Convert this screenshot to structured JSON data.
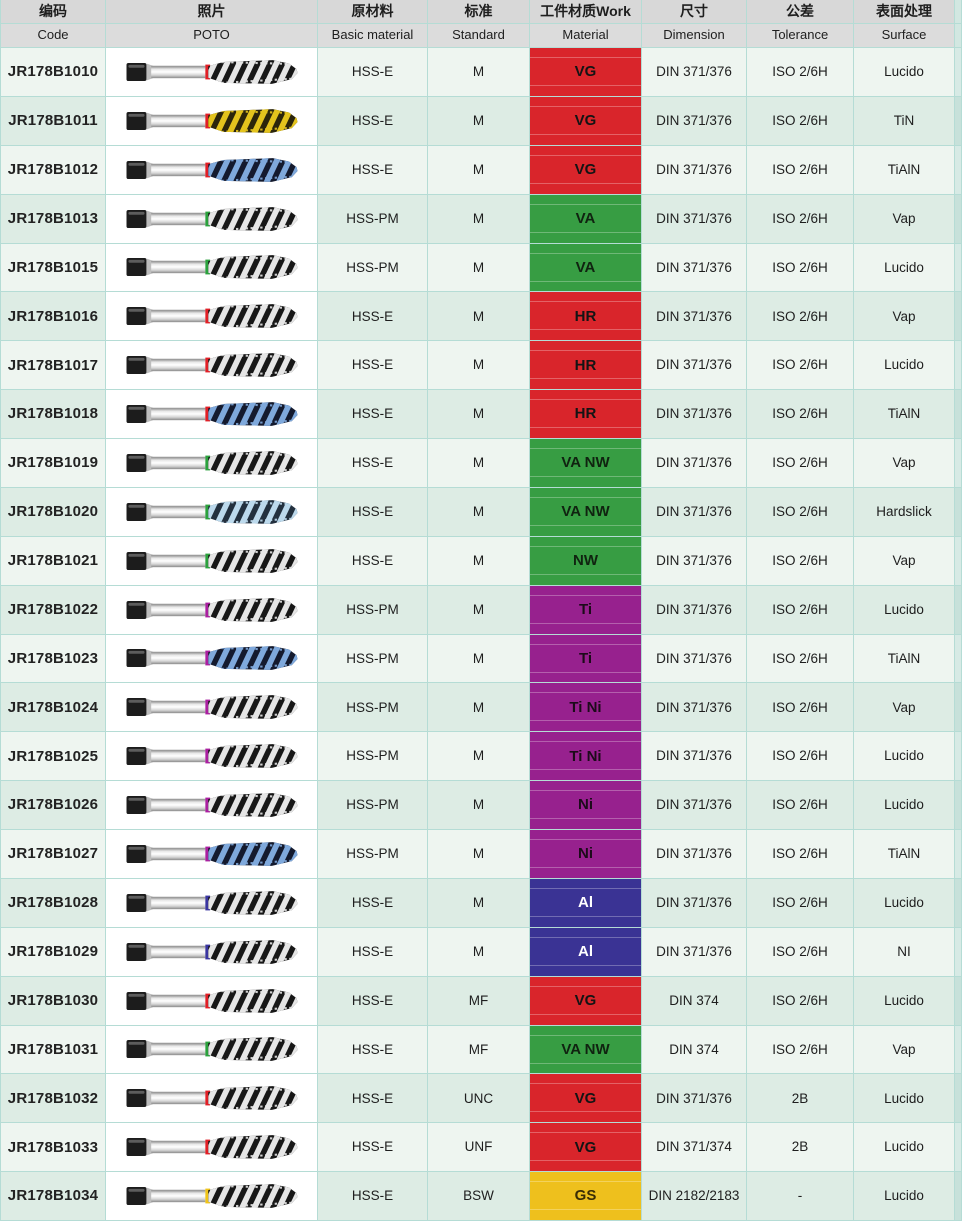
{
  "header": {
    "columns": [
      {
        "zh": "编码",
        "en": "Code"
      },
      {
        "zh": "照片",
        "en": "POTO"
      },
      {
        "zh": "原材料",
        "en": "Basic material"
      },
      {
        "zh": "标准",
        "en": "Standard"
      },
      {
        "zh": "工件材质Work",
        "en": "Material"
      },
      {
        "zh": "尺寸",
        "en": "Dimension"
      },
      {
        "zh": "公差",
        "en": "Tolerance"
      },
      {
        "zh": "表面处理",
        "en": "Surface"
      }
    ]
  },
  "colors": {
    "grid_line": "#b5dcd5",
    "row_light": "#eef5f0",
    "row_dark": "#ddece4",
    "header_bg": "#d8d8d8",
    "work": {
      "red": {
        "bg": "#d9252b",
        "fg": "#141414"
      },
      "green": {
        "bg": "#379d43",
        "fg": "#102310"
      },
      "purple": {
        "bg": "#97218e",
        "fg": "#1c0b1a"
      },
      "indigo": {
        "bg": "#3a3394",
        "fg": "#ffffff"
      },
      "yellow": {
        "bg": "#eec01d",
        "fg": "#3a2d05"
      }
    }
  },
  "photo_styles": {
    "rings": {
      "red": "#e11f26",
      "green": "#2ba13d",
      "purple": "#aa1fa0",
      "blue": "#3a35a0",
      "yellow": "#f0c419"
    },
    "flutes": {
      "steel": {
        "base": "#171717",
        "stripe": "#e6e6e6"
      },
      "gold": {
        "base": "#2b250b",
        "stripe": "#e3c31d"
      },
      "blue": {
        "base": "#141a2e",
        "stripe": "#7fa9dc"
      },
      "iceblue": {
        "base": "#23303e",
        "stripe": "#bcd9ec"
      }
    }
  },
  "rows": [
    {
      "code": "JR178B1010",
      "basic_material": "HSS-E",
      "standard": "M",
      "work_material": {
        "label": "VG",
        "color_key": "red"
      },
      "dimension": "DIN 371/376",
      "tolerance": "ISO 2/6H",
      "surface": "Lucido",
      "photo": {
        "ring": "red",
        "flute": "steel"
      }
    },
    {
      "code": "JR178B1011",
      "basic_material": "HSS-E",
      "standard": "M",
      "work_material": {
        "label": "VG",
        "color_key": "red"
      },
      "dimension": "DIN 371/376",
      "tolerance": "ISO 2/6H",
      "surface": "TiN",
      "photo": {
        "ring": "red",
        "flute": "gold"
      }
    },
    {
      "code": "JR178B1012",
      "basic_material": "HSS-E",
      "standard": "M",
      "work_material": {
        "label": "VG",
        "color_key": "red"
      },
      "dimension": "DIN 371/376",
      "tolerance": "ISO 2/6H",
      "surface": "TiAlN",
      "photo": {
        "ring": "red",
        "flute": "blue"
      }
    },
    {
      "code": "JR178B1013",
      "basic_material": "HSS-PM",
      "standard": "M",
      "work_material": {
        "label": "VA",
        "color_key": "green"
      },
      "dimension": "DIN 371/376",
      "tolerance": "ISO 2/6H",
      "surface": "Vap",
      "photo": {
        "ring": "green",
        "flute": "steel"
      }
    },
    {
      "code": "JR178B1015",
      "basic_material": "HSS-PM",
      "standard": "M",
      "work_material": {
        "label": "VA",
        "color_key": "green"
      },
      "dimension": "DIN 371/376",
      "tolerance": "ISO 2/6H",
      "surface": "Lucido",
      "photo": {
        "ring": "green",
        "flute": "steel"
      }
    },
    {
      "code": "JR178B1016",
      "basic_material": "HSS-E",
      "standard": "M",
      "work_material": {
        "label": "HR",
        "color_key": "red"
      },
      "dimension": "DIN 371/376",
      "tolerance": "ISO 2/6H",
      "surface": "Vap",
      "photo": {
        "ring": "red",
        "flute": "steel"
      }
    },
    {
      "code": "JR178B1017",
      "basic_material": "HSS-E",
      "standard": "M",
      "work_material": {
        "label": "HR",
        "color_key": "red"
      },
      "dimension": "DIN 371/376",
      "tolerance": "ISO 2/6H",
      "surface": "Lucido",
      "photo": {
        "ring": "red",
        "flute": "steel"
      }
    },
    {
      "code": "JR178B1018",
      "basic_material": "HSS-E",
      "standard": "M",
      "work_material": {
        "label": "HR",
        "color_key": "red"
      },
      "dimension": "DIN 371/376",
      "tolerance": "ISO 2/6H",
      "surface": "TiAlN",
      "photo": {
        "ring": "red",
        "flute": "blue"
      }
    },
    {
      "code": "JR178B1019",
      "basic_material": "HSS-E",
      "standard": "M",
      "work_material": {
        "label": "VA NW",
        "color_key": "green"
      },
      "dimension": "DIN 371/376",
      "tolerance": "ISO 2/6H",
      "surface": "Vap",
      "photo": {
        "ring": "green",
        "flute": "steel"
      }
    },
    {
      "code": "JR178B1020",
      "basic_material": "HSS-E",
      "standard": "M",
      "work_material": {
        "label": "VA NW",
        "color_key": "green"
      },
      "dimension": "DIN 371/376",
      "tolerance": "ISO 2/6H",
      "surface": "Hardslick",
      "photo": {
        "ring": "green",
        "flute": "iceblue"
      }
    },
    {
      "code": "JR178B1021",
      "basic_material": "HSS-E",
      "standard": "M",
      "work_material": {
        "label": "NW",
        "color_key": "green"
      },
      "dimension": "DIN 371/376",
      "tolerance": "ISO 2/6H",
      "surface": "Vap",
      "photo": {
        "ring": "green",
        "flute": "steel"
      }
    },
    {
      "code": "JR178B1022",
      "basic_material": "HSS-PM",
      "standard": "M",
      "work_material": {
        "label": "Ti",
        "color_key": "purple"
      },
      "dimension": "DIN 371/376",
      "tolerance": "ISO 2/6H",
      "surface": "Lucido",
      "photo": {
        "ring": "purple",
        "flute": "steel"
      }
    },
    {
      "code": "JR178B1023",
      "basic_material": "HSS-PM",
      "standard": "M",
      "work_material": {
        "label": "Ti",
        "color_key": "purple"
      },
      "dimension": "DIN 371/376",
      "tolerance": "ISO 2/6H",
      "surface": "TiAlN",
      "photo": {
        "ring": "purple",
        "flute": "blue"
      }
    },
    {
      "code": "JR178B1024",
      "basic_material": "HSS-PM",
      "standard": "M",
      "work_material": {
        "label": "Ti Ni",
        "color_key": "purple"
      },
      "dimension": "DIN 371/376",
      "tolerance": "ISO 2/6H",
      "surface": "Vap",
      "photo": {
        "ring": "purple",
        "flute": "steel"
      }
    },
    {
      "code": "JR178B1025",
      "basic_material": "HSS-PM",
      "standard": "M",
      "work_material": {
        "label": "Ti Ni",
        "color_key": "purple"
      },
      "dimension": "DIN 371/376",
      "tolerance": "ISO 2/6H",
      "surface": "Lucido",
      "photo": {
        "ring": "purple",
        "flute": "steel"
      }
    },
    {
      "code": "JR178B1026",
      "basic_material": "HSS-PM",
      "standard": "M",
      "work_material": {
        "label": "Ni",
        "color_key": "purple"
      },
      "dimension": "DIN 371/376",
      "tolerance": "ISO 2/6H",
      "surface": "Lucido",
      "photo": {
        "ring": "purple",
        "flute": "steel"
      }
    },
    {
      "code": "JR178B1027",
      "basic_material": "HSS-PM",
      "standard": "M",
      "work_material": {
        "label": "Ni",
        "color_key": "purple"
      },
      "dimension": "DIN 371/376",
      "tolerance": "ISO 2/6H",
      "surface": "TiAlN",
      "photo": {
        "ring": "purple",
        "flute": "blue"
      }
    },
    {
      "code": "JR178B1028",
      "basic_material": "HSS-E",
      "standard": "M",
      "work_material": {
        "label": "Al",
        "color_key": "indigo"
      },
      "dimension": "DIN 371/376",
      "tolerance": "ISO 2/6H",
      "surface": "Lucido",
      "photo": {
        "ring": "blue",
        "flute": "steel"
      }
    },
    {
      "code": "JR178B1029",
      "basic_material": "HSS-E",
      "standard": "M",
      "work_material": {
        "label": "Al",
        "color_key": "indigo"
      },
      "dimension": "DIN 371/376",
      "tolerance": "ISO 2/6H",
      "surface": "NI",
      "photo": {
        "ring": "blue",
        "flute": "steel"
      }
    },
    {
      "code": "JR178B1030",
      "basic_material": "HSS-E",
      "standard": "MF",
      "work_material": {
        "label": "VG",
        "color_key": "red"
      },
      "dimension": "DIN 374",
      "tolerance": "ISO 2/6H",
      "surface": "Lucido",
      "photo": {
        "ring": "red",
        "flute": "steel"
      }
    },
    {
      "code": "JR178B1031",
      "basic_material": "HSS-E",
      "standard": "MF",
      "work_material": {
        "label": "VA NW",
        "color_key": "green"
      },
      "dimension": "DIN 374",
      "tolerance": "ISO 2/6H",
      "surface": "Vap",
      "photo": {
        "ring": "green",
        "flute": "steel"
      }
    },
    {
      "code": "JR178B1032",
      "basic_material": "HSS-E",
      "standard": "UNC",
      "work_material": {
        "label": "VG",
        "color_key": "red"
      },
      "dimension": "DIN 371/376",
      "tolerance": "2B",
      "surface": "Lucido",
      "photo": {
        "ring": "red",
        "flute": "steel"
      }
    },
    {
      "code": "JR178B1033",
      "basic_material": "HSS-E",
      "standard": "UNF",
      "work_material": {
        "label": "VG",
        "color_key": "red"
      },
      "dimension": "DIN 371/374",
      "tolerance": "2B",
      "surface": "Lucido",
      "photo": {
        "ring": "red",
        "flute": "steel"
      }
    },
    {
      "code": "JR178B1034",
      "basic_material": "HSS-E",
      "standard": "BSW",
      "work_material": {
        "label": "GS",
        "color_key": "yellow"
      },
      "dimension": "DIN 2182/2183",
      "tolerance": "-",
      "surface": "Lucido",
      "photo": {
        "ring": "yellow",
        "flute": "steel"
      }
    }
  ]
}
